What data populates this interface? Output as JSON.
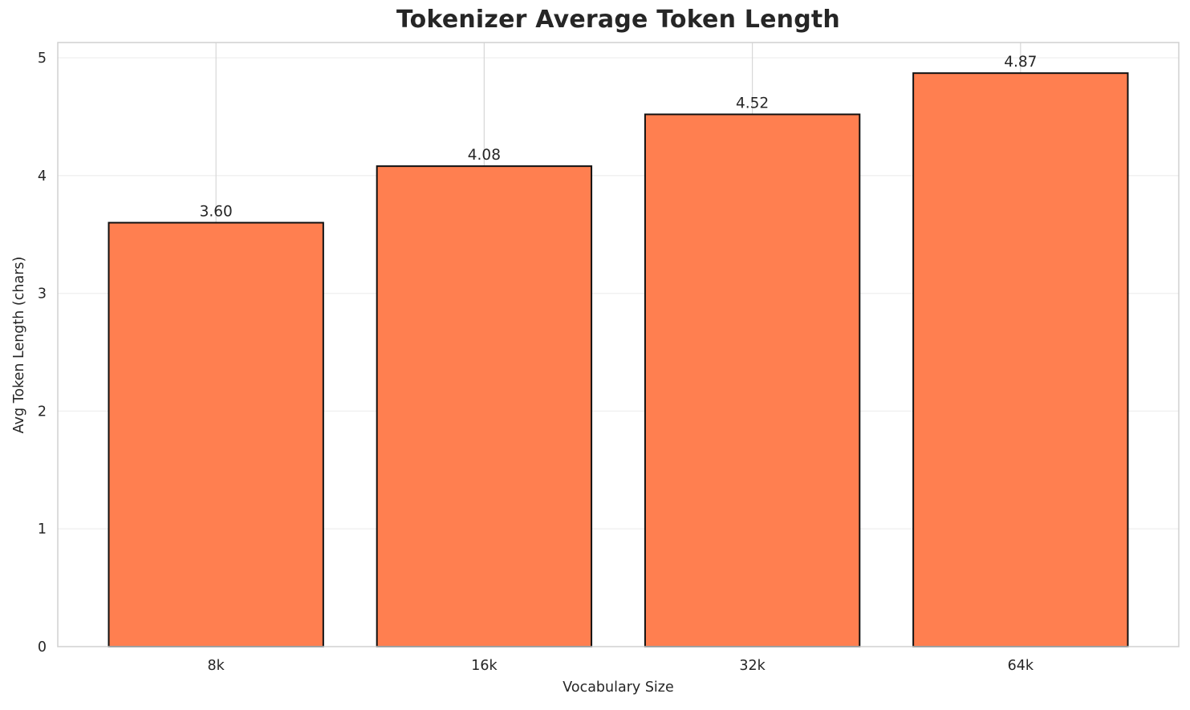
{
  "chart_data": {
    "type": "bar",
    "title": "Tokenizer Average Token Length",
    "xlabel": "Vocabulary Size",
    "ylabel": "Avg Token Length (chars)",
    "categories": [
      "8k",
      "16k",
      "32k",
      "64k"
    ],
    "values": [
      3.6,
      4.08,
      4.52,
      4.87
    ],
    "value_labels": [
      "3.60",
      "4.08",
      "4.52",
      "4.87"
    ],
    "yticks": [
      "0",
      "1",
      "2",
      "3",
      "4",
      "5"
    ],
    "ylim": [
      0,
      5.13
    ],
    "grid": true,
    "legend_position": "none",
    "colors": {
      "bar_fill": "#FF7F50",
      "bar_edge": "#111111",
      "h_gridline": "#f0f0f0",
      "v_gridline": "#d7d7d7",
      "plot_border": "#d0d0d0",
      "text": "#262626"
    }
  }
}
